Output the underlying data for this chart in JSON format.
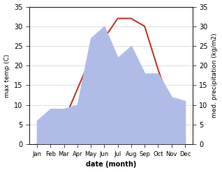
{
  "months": [
    "Jan",
    "Feb",
    "Mar",
    "Apr",
    "May",
    "Jun",
    "Jul",
    "Aug",
    "Sep",
    "Oct",
    "Nov",
    "Dec"
  ],
  "temp": [
    0,
    1,
    6,
    14,
    22,
    27,
    32,
    32,
    30,
    19,
    9,
    2
  ],
  "precip": [
    6,
    9,
    9,
    10,
    27,
    30,
    22,
    25,
    18,
    18,
    12,
    11
  ],
  "temp_color": "#c0392b",
  "precip_color": "#b0bce8",
  "bg_color": "#ffffff",
  "xlabel": "date (month)",
  "ylabel_left": "max temp (C)",
  "ylabel_right": "med. precipitation (kg/m2)",
  "ylim_left": [
    0,
    35
  ],
  "ylim_right": [
    0,
    35
  ],
  "yticks_left": [
    0,
    5,
    10,
    15,
    20,
    25,
    30,
    35
  ],
  "yticks_right": [
    0,
    5,
    10,
    15,
    20,
    25,
    30,
    35
  ]
}
